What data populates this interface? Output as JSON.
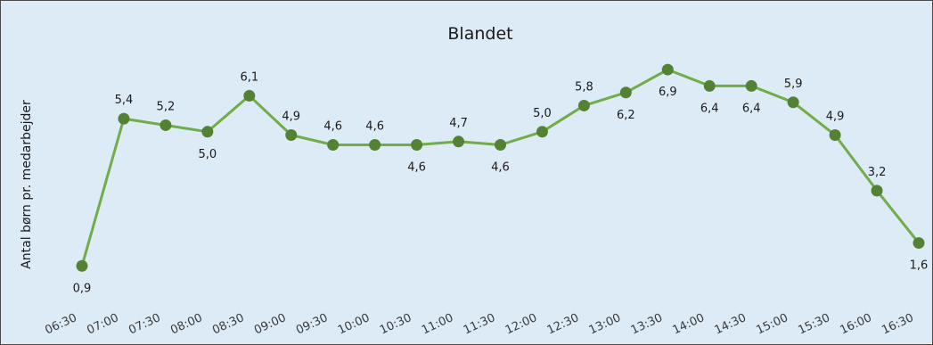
{
  "chart_data": {
    "type": "line",
    "title": "Blandet",
    "xlabel": "",
    "ylabel": "Antal børn pr. medarbejder",
    "categories": [
      "06:30",
      "07:00",
      "07:30",
      "08:00",
      "08:30",
      "09:00",
      "09:30",
      "10:00",
      "10:30",
      "11:00",
      "11:30",
      "12:00",
      "12:30",
      "13:00",
      "13:30",
      "14:00",
      "14:30",
      "15:00",
      "15:30",
      "16:00",
      "16:30"
    ],
    "series": [
      {
        "values": [
          0.9,
          5.4,
          5.2,
          5.0,
          6.1,
          4.9,
          4.6,
          4.6,
          4.6,
          4.7,
          4.6,
          5.0,
          5.8,
          6.2,
          6.9,
          6.4,
          6.4,
          5.9,
          4.9,
          3.2,
          1.6
        ],
        "labels": [
          "0,9",
          "5,4",
          "5,2",
          "5,0",
          "6,1",
          "4,9",
          "4,6",
          "4,6",
          "4,6",
          "4,7",
          "4,6",
          "5,0",
          "5,8",
          "6,2",
          "6,9",
          "6,4",
          "6,4",
          "5,9",
          "4,9",
          "3,2",
          "1,6"
        ]
      }
    ],
    "label_position": [
      "below",
      "above",
      "above",
      "below",
      "above",
      "above",
      "above",
      "above",
      "below",
      "above",
      "below",
      "above",
      "above",
      "below",
      "below",
      "below",
      "below",
      "above",
      "above",
      "above",
      "below"
    ],
    "ylim": [
      0,
      7
    ],
    "grid": false,
    "colors": {
      "line": "#70ad47",
      "marker": "#548235",
      "background": "#ddebf7"
    }
  }
}
